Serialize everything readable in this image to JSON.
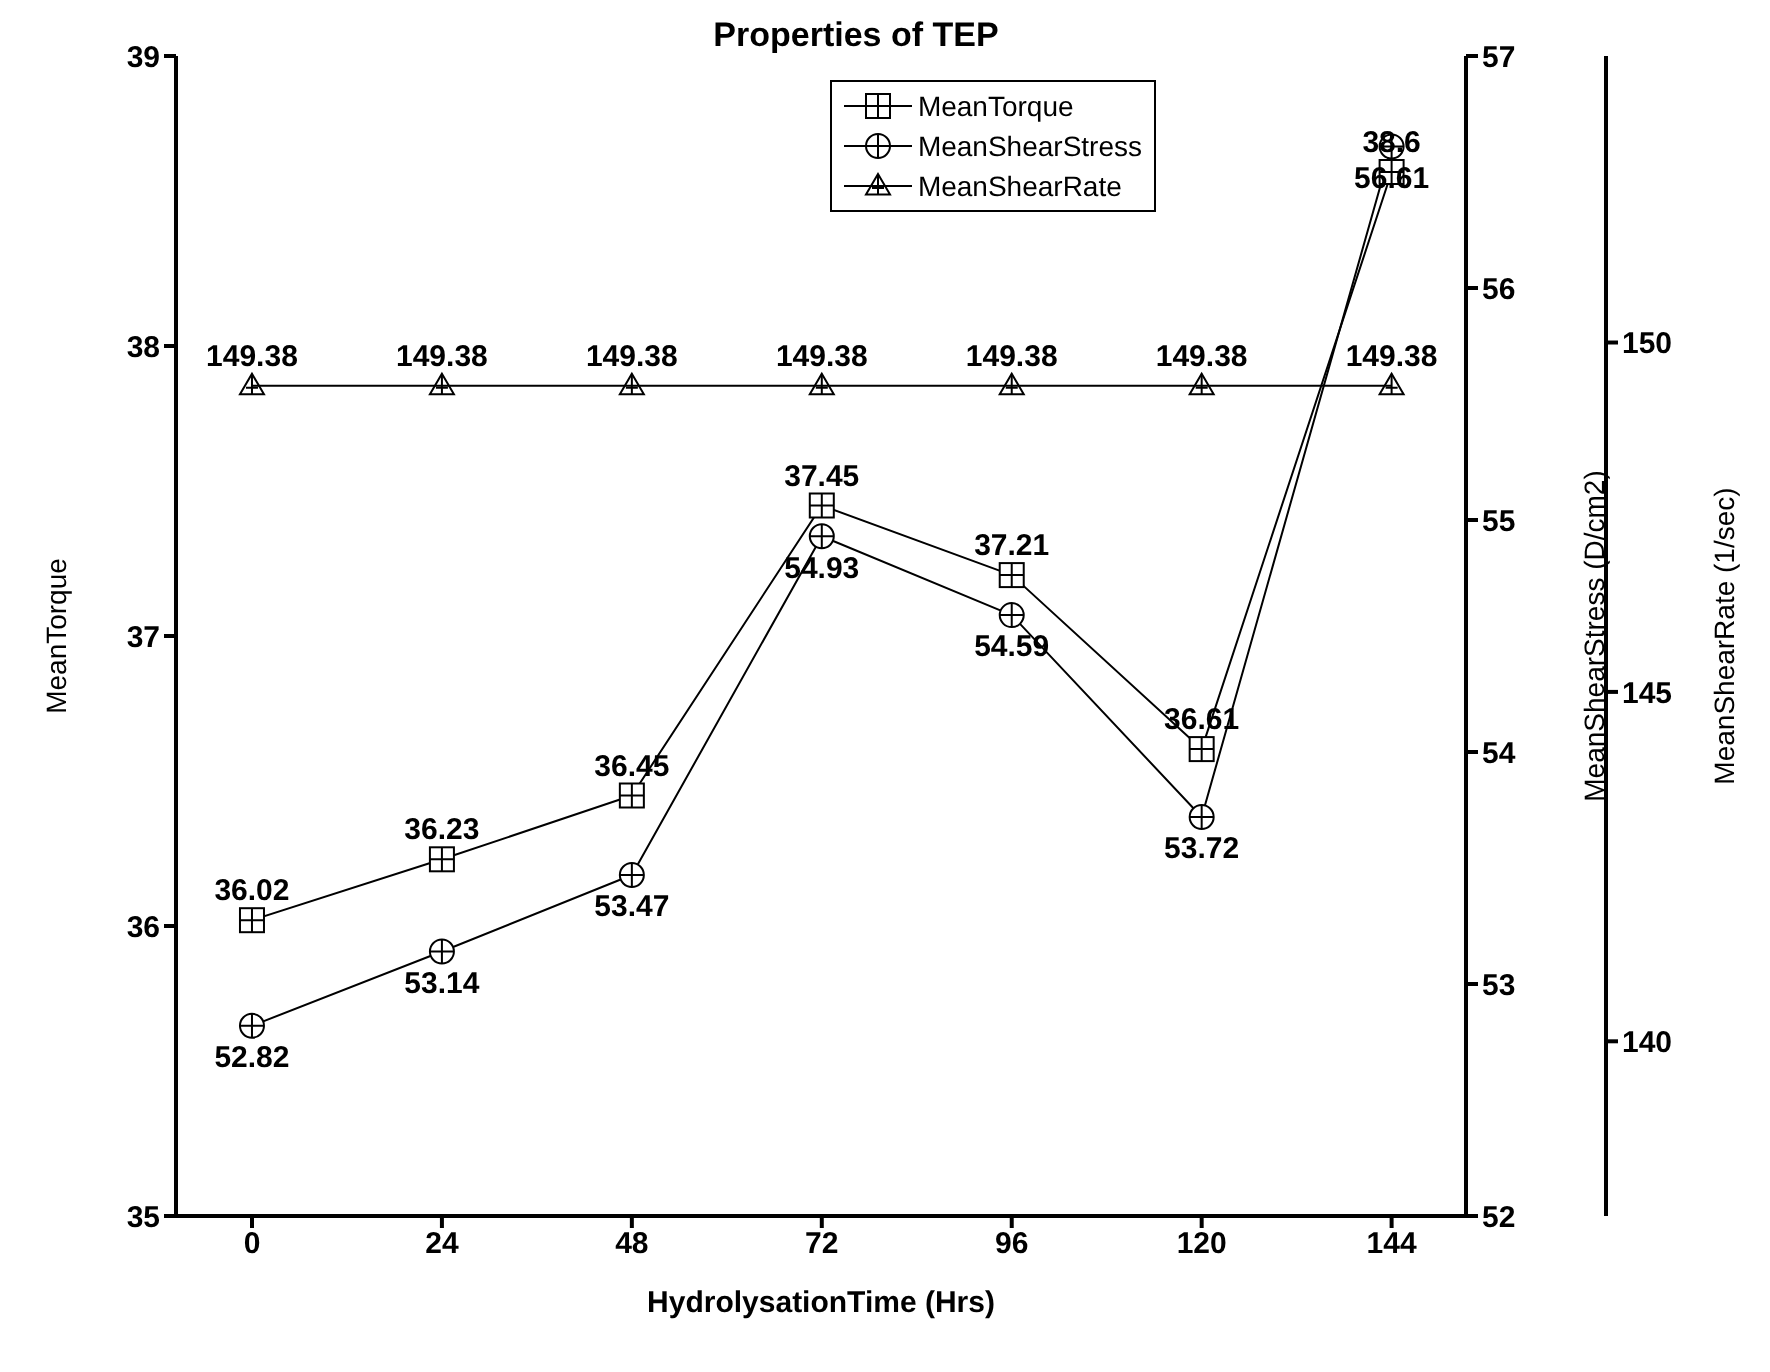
{
  "chart_data": {
    "type": "line",
    "title": "Properties of TEP",
    "xlabel": "HydrolysationTime (Hrs)",
    "ylabel": "MeanTorque",
    "y2label": "MeanShearStress (D/cm2)",
    "y3label": "MeanShearRate (1/sec)",
    "x": [
      0,
      24,
      48,
      72,
      96,
      120,
      144
    ],
    "xlim": [
      -9.6,
      153.4
    ],
    "xticks": [
      0,
      24,
      48,
      72,
      96,
      120,
      144
    ],
    "ylim": [
      35,
      39
    ],
    "yticks": [
      35,
      36,
      37,
      38,
      39
    ],
    "y2lim": [
      52,
      57
    ],
    "y2ticks": [
      52,
      53,
      54,
      55,
      56,
      57
    ],
    "y3lim": [
      137.5,
      154.1
    ],
    "y3ticks": [
      140,
      145,
      150
    ],
    "series": [
      {
        "name": "MeanTorque",
        "color": "#000000",
        "marker": "square",
        "values": [
          36.02,
          36.23,
          36.45,
          37.45,
          37.21,
          36.61,
          38.6
        ]
      },
      {
        "name": "MeanShearStress",
        "color": "#000000",
        "marker": "circle",
        "axis": "y2",
        "values": [
          52.82,
          53.14,
          53.47,
          54.93,
          54.59,
          53.72,
          56.61
        ]
      },
      {
        "name": "MeanShearRate",
        "color": "#000000",
        "marker": "triangle",
        "axis": "y3",
        "values": [
          149.38,
          149.38,
          149.38,
          149.38,
          149.38,
          149.38,
          149.38
        ]
      }
    ],
    "data_labels": true,
    "legend": "top right",
    "grid": false,
    "line_style": "solid"
  }
}
